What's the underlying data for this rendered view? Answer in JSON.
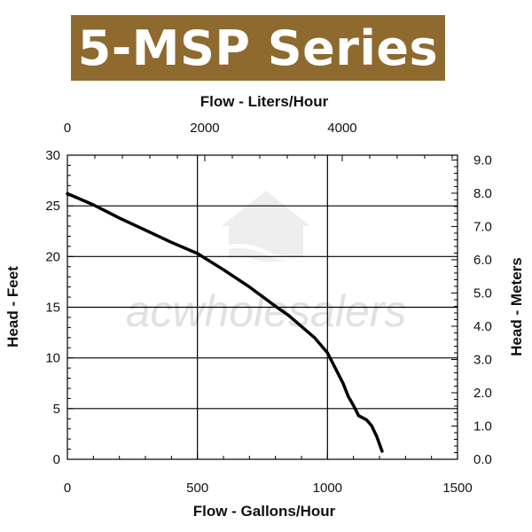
{
  "banner": {
    "title": "5-MSP Series",
    "background": "#8e6a2f",
    "text_color": "#ffffff"
  },
  "watermark": "acwholesalers",
  "chart_data": {
    "type": "line",
    "title": "5-MSP Series",
    "xlabel": "Flow - Gallons/Hour",
    "x2label": "Flow - Liters/Hour",
    "ylabel": "Head - Feet",
    "y2label": "Head - Meters",
    "xlim": [
      0,
      1500
    ],
    "ylim": [
      0,
      30
    ],
    "x2lim": [
      0,
      5678
    ],
    "y2lim": [
      0,
      9.144
    ],
    "x_ticks": [
      "0",
      "500",
      "1000",
      "1500"
    ],
    "x_tick_values": [
      0,
      500,
      1000,
      1500
    ],
    "x2_ticks": [
      "0",
      "2000",
      "4000"
    ],
    "x2_tick_values": [
      0,
      2000,
      4000
    ],
    "y_ticks": [
      "0",
      "5",
      "10",
      "15",
      "20",
      "25",
      "30"
    ],
    "y_tick_values": [
      0,
      5,
      10,
      15,
      20,
      25,
      30
    ],
    "y2_ticks": [
      "0.0",
      "1.0",
      "2.0",
      "3.0",
      "4.0",
      "5.0",
      "6.0",
      "7.0",
      "8.0",
      "9.0"
    ],
    "y2_tick_values": [
      0,
      1,
      2,
      3,
      4,
      5,
      6,
      7,
      8,
      9
    ],
    "grid": true,
    "series": [
      {
        "color": "#000000",
        "x": [
          0,
          100,
          200,
          300,
          400,
          500,
          600,
          700,
          800,
          850,
          950,
          1000,
          1030,
          1060,
          1080,
          1100,
          1120,
          1150,
          1170,
          1190,
          1210
        ],
        "y": [
          26.2,
          25.1,
          23.8,
          22.6,
          21.4,
          20.3,
          18.7,
          17.0,
          15.1,
          14.2,
          12.0,
          10.5,
          9.0,
          7.5,
          6.2,
          5.3,
          4.3,
          3.9,
          3.3,
          2.2,
          0.8
        ]
      }
    ]
  }
}
